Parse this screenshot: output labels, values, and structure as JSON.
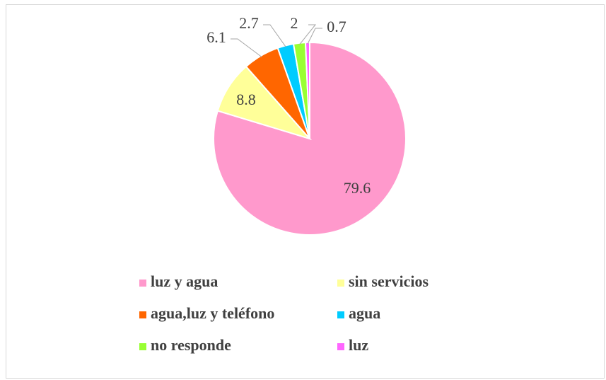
{
  "chart_data": {
    "type": "pie",
    "categories": [
      "luz y agua",
      "sin servicios",
      "agua,luz y teléfono",
      "agua",
      "no responde",
      "luz"
    ],
    "values": [
      79.6,
      8.8,
      6.1,
      2.7,
      2.0,
      0.7
    ],
    "colors": [
      "#ff99cc",
      "#ffff99",
      "#ff6600",
      "#00ccff",
      "#99ff33",
      "#ff66ff"
    ],
    "legend": "bottom"
  }
}
